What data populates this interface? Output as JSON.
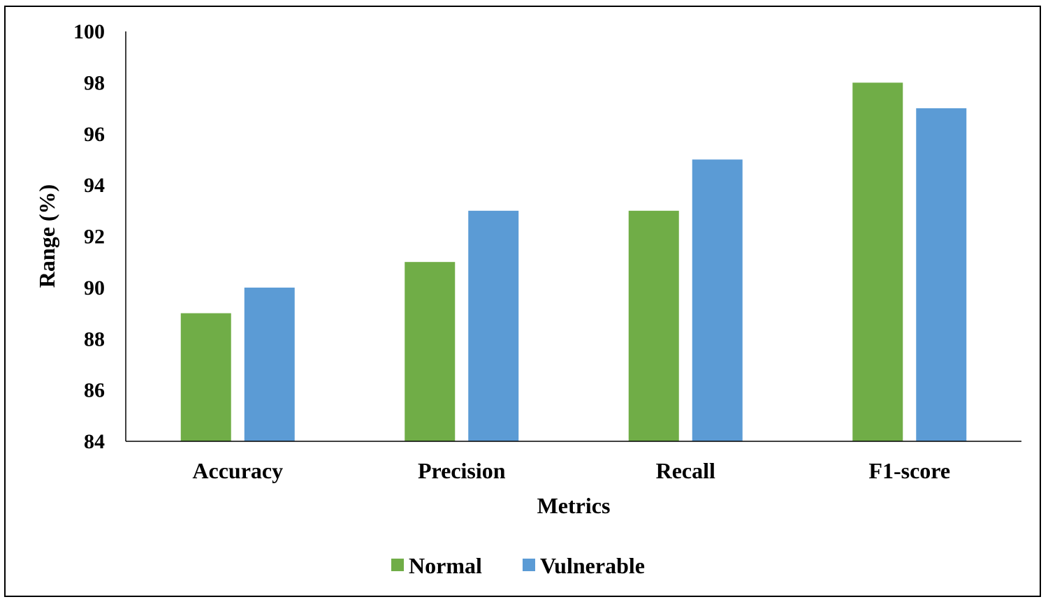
{
  "chart_data": {
    "type": "bar",
    "categories": [
      "Accuracy",
      "Precision",
      "Recall",
      "F1-score"
    ],
    "series": [
      {
        "name": "Normal",
        "values": [
          89,
          91,
          93,
          98
        ],
        "color": "#70ad47"
      },
      {
        "name": "Vulnerable",
        "values": [
          90,
          93,
          95,
          97
        ],
        "color": "#5b9bd5"
      }
    ],
    "xlabel": "Metrics",
    "ylabel": "Range (%)",
    "ylim": [
      84,
      100
    ],
    "yticks": [
      84,
      86,
      88,
      90,
      92,
      94,
      96,
      98,
      100
    ],
    "grid": false,
    "legend": "bottom"
  }
}
